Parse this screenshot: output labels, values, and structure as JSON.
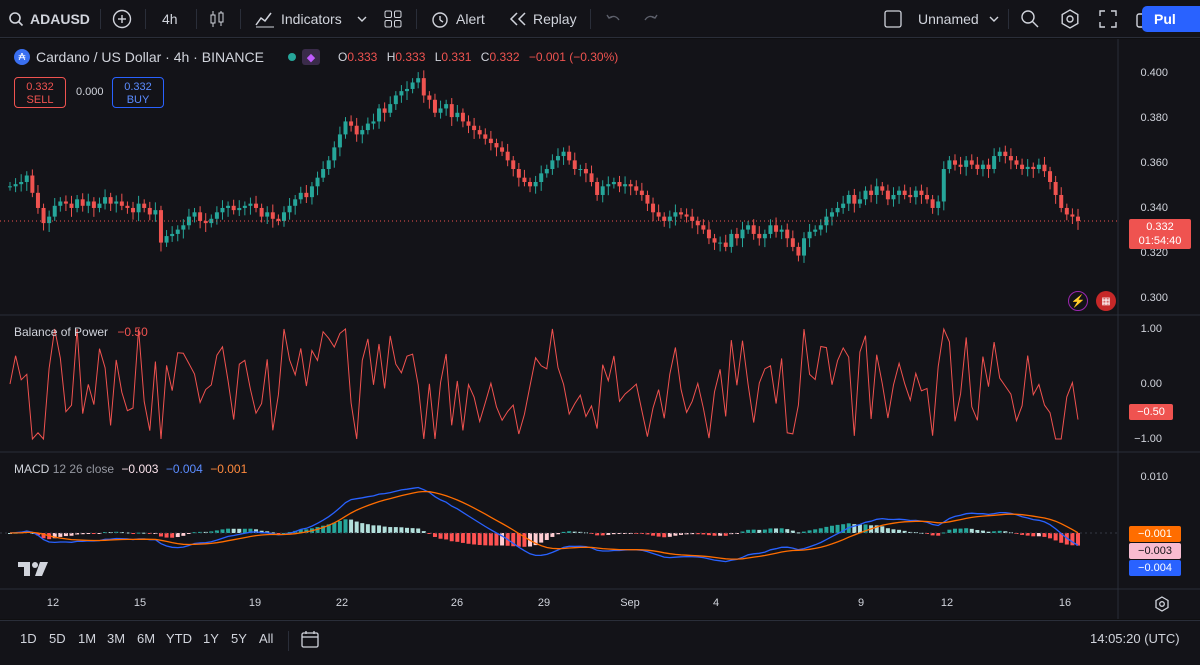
{
  "toolbar": {
    "symbol": "ADAUSD",
    "interval": "4h",
    "indicators": "Indicators",
    "alert": "Alert",
    "replay": "Replay",
    "layout_name": "Unnamed",
    "publish": "Pul"
  },
  "legend": {
    "title": "Cardano / US Dollar · 4h · BINANCE",
    "ohlc": [
      {
        "k": "O",
        "v": "0.333"
      },
      {
        "k": "H",
        "v": "0.333"
      },
      {
        "k": "L",
        "v": "0.331"
      },
      {
        "k": "C",
        "v": "0.332"
      }
    ],
    "change": "−0.001 (−0.30%)"
  },
  "trade": {
    "sell_price": "0.332",
    "sell_label": "SELL",
    "spread": "0.000",
    "buy_price": "0.332",
    "buy_label": "BUY"
  },
  "price_axis": [
    "0.400",
    "0.380",
    "0.360",
    "0.340",
    "0.320",
    "0.300"
  ],
  "last_price": {
    "value": "0.332",
    "countdown": "01:54:40"
  },
  "bop": {
    "name": "Balance of Power",
    "value": "−0.50",
    "axis": [
      "1.00",
      "0.00",
      "−1.00"
    ],
    "tag": "−0.50"
  },
  "macd": {
    "name": "MACD",
    "params": "12 26 close",
    "hist": "−0.003",
    "macd": "−0.004",
    "signal": "−0.001",
    "axis": [
      "0.010"
    ],
    "tags": {
      "signal": "−0.001",
      "hist": "−0.003",
      "macd": "−0.004"
    }
  },
  "time_axis": [
    "12",
    "15",
    "19",
    "22",
    "26",
    "29",
    "Sep",
    "4",
    "9",
    "12",
    "16"
  ],
  "bottom": {
    "ranges": [
      "1D",
      "5D",
      "1M",
      "3M",
      "6M",
      "YTD",
      "1Y",
      "5Y",
      "All"
    ],
    "clock": "14:05:20 (UTC)"
  },
  "colors": {
    "up": "#26a69a",
    "down": "#ef5350",
    "bop": "#f0524f",
    "macd": "#2962ff",
    "signal": "#ff6d00",
    "accent": "#2962ff"
  },
  "chart_data": [
    {
      "type": "candlestick",
      "title": "Cardano / US Dollar · 4h · BINANCE",
      "ylim": [
        0.295,
        0.405
      ],
      "x_labels": [
        "12",
        "15",
        "19",
        "22",
        "26",
        "29",
        "Sep",
        "4",
        "9",
        "12",
        "16"
      ],
      "close": [
        0.348,
        0.349,
        0.35,
        0.353,
        0.345,
        0.338,
        0.331,
        0.334,
        0.339,
        0.341,
        0.34,
        0.338,
        0.342,
        0.339,
        0.341,
        0.338,
        0.34,
        0.343,
        0.34,
        0.341,
        0.339,
        0.338,
        0.336,
        0.34,
        0.338,
        0.335,
        0.337,
        0.322,
        0.325,
        0.326,
        0.328,
        0.33,
        0.334,
        0.336,
        0.332,
        0.331,
        0.333,
        0.336,
        0.338,
        0.339,
        0.337,
        0.338,
        0.339,
        0.34,
        0.338,
        0.334,
        0.336,
        0.333,
        0.332,
        0.336,
        0.339,
        0.342,
        0.345,
        0.343,
        0.348,
        0.352,
        0.356,
        0.36,
        0.366,
        0.372,
        0.378,
        0.376,
        0.372,
        0.374,
        0.377,
        0.378,
        0.384,
        0.382,
        0.386,
        0.39,
        0.392,
        0.393,
        0.396,
        0.398,
        0.39,
        0.388,
        0.382,
        0.384,
        0.386,
        0.38,
        0.382,
        0.378,
        0.376,
        0.374,
        0.372,
        0.37,
        0.368,
        0.366,
        0.364,
        0.36,
        0.356,
        0.352,
        0.35,
        0.348,
        0.35,
        0.354,
        0.356,
        0.36,
        0.362,
        0.364,
        0.36,
        0.356,
        0.356,
        0.354,
        0.35,
        0.344,
        0.348,
        0.349,
        0.35,
        0.348,
        0.349,
        0.348,
        0.346,
        0.344,
        0.34,
        0.336,
        0.334,
        0.332,
        0.334,
        0.336,
        0.335,
        0.334,
        0.332,
        0.33,
        0.328,
        0.324,
        0.322,
        0.322,
        0.32,
        0.326,
        0.324,
        0.328,
        0.33,
        0.326,
        0.324,
        0.326,
        0.33,
        0.327,
        0.328,
        0.324,
        0.32,
        0.316,
        0.324,
        0.327,
        0.328,
        0.33,
        0.334,
        0.336,
        0.338,
        0.34,
        0.344,
        0.34,
        0.342,
        0.346,
        0.344,
        0.348,
        0.346,
        0.342,
        0.344,
        0.346,
        0.344,
        0.343,
        0.346,
        0.344,
        0.342,
        0.338,
        0.341,
        0.356,
        0.36,
        0.358,
        0.357,
        0.36,
        0.358,
        0.356,
        0.358,
        0.356,
        0.362,
        0.364,
        0.362,
        0.36,
        0.358,
        0.356,
        0.357,
        0.356,
        0.358,
        0.355,
        0.35,
        0.344,
        0.338,
        0.335,
        0.334,
        0.332
      ],
      "values_note": "close values"
    },
    {
      "type": "line",
      "title": "Balance of Power",
      "ylim": [
        -1,
        1
      ],
      "last": -0.5
    },
    {
      "type": "bar+line",
      "title": "MACD 12 26 close",
      "series": [
        {
          "name": "Histogram",
          "last": -0.003
        },
        {
          "name": "MACD",
          "last": -0.004
        },
        {
          "name": "Signal",
          "last": -0.001
        }
      ]
    }
  ]
}
